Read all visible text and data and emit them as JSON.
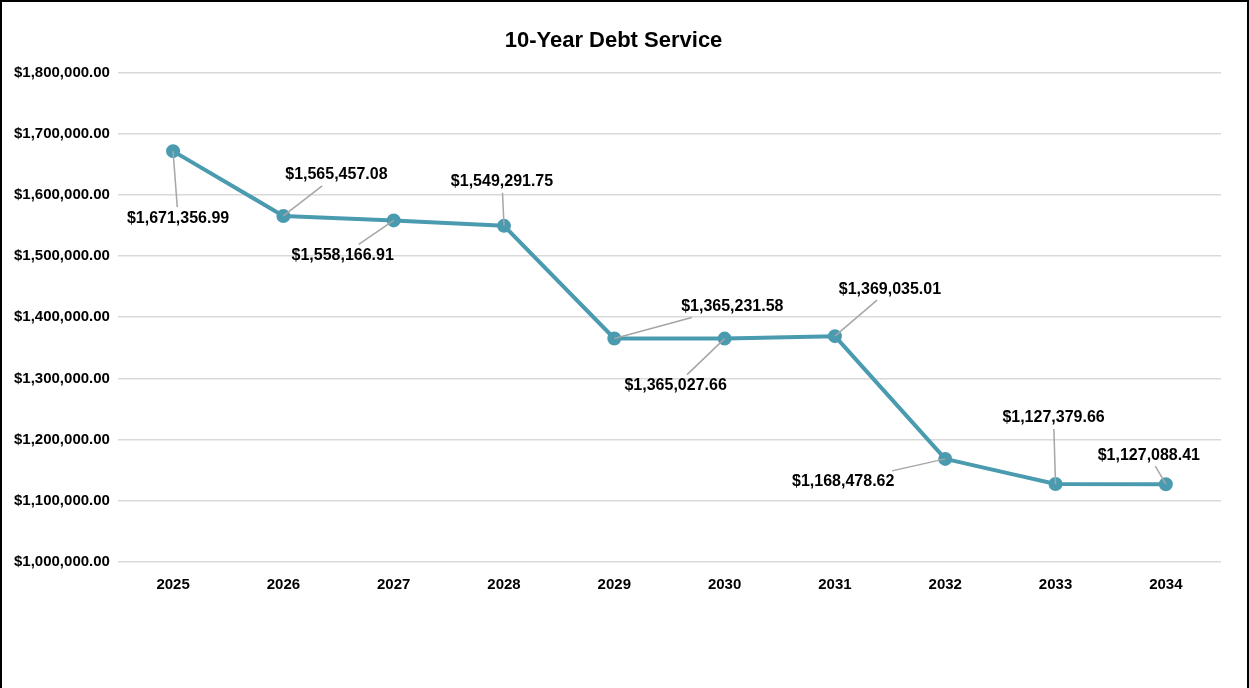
{
  "chart_data": {
    "type": "line",
    "title": "10-Year Debt Service",
    "categories": [
      "2025",
      "2026",
      "2027",
      "2028",
      "2029",
      "2030",
      "2031",
      "2032",
      "2033",
      "2034"
    ],
    "series": [
      {
        "color": "#4a9bb0",
        "values": [
          1671356.99,
          1565457.08,
          1558166.91,
          1549291.75,
          1365231.58,
          1365027.66,
          1369035.01,
          1168478.62,
          1127379.66,
          1127088.41
        ],
        "value_labels": [
          "$1,671,356.99",
          "$1,565,457.08",
          "$1,558,166.91",
          "$1,549,291.75",
          "$1,365,231.58",
          "$1,365,027.66",
          "$1,369,035.01",
          "$1,168,478.62",
          "$1,127,379.66",
          "$1,127,088.41"
        ]
      }
    ],
    "ylim": [
      1000000,
      1800000
    ],
    "yticks": [
      {
        "value": 1000000,
        "label": "$1,000,000.00"
      },
      {
        "value": 1100000,
        "label": "$1,100,000.00"
      },
      {
        "value": 1200000,
        "label": "$1,200,000.00"
      },
      {
        "value": 1300000,
        "label": "$1,300,000.00"
      },
      {
        "value": 1400000,
        "label": "$1,400,000.00"
      },
      {
        "value": 1500000,
        "label": "$1,500,000.00"
      },
      {
        "value": 1600000,
        "label": "$1,600,000.00"
      },
      {
        "value": 1700000,
        "label": "$1,700,000.00"
      },
      {
        "value": 1800000,
        "label": "$1,800,000.00"
      }
    ],
    "grid": "y",
    "marker": "circle",
    "line_style": "solid",
    "legend": false
  }
}
